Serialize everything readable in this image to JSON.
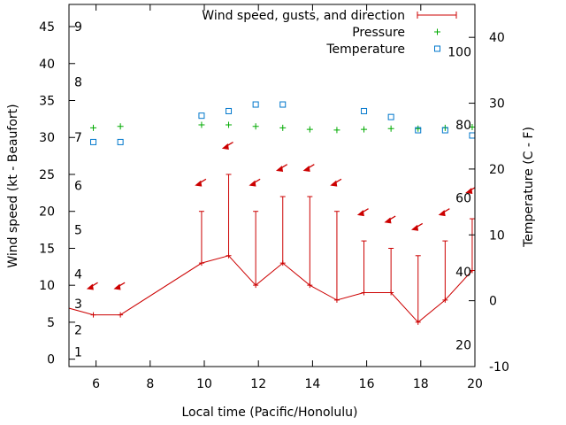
{
  "chart_data": {
    "type": "line",
    "xlabel": "Local time (Pacific/Honolulu)",
    "ylabel": "Wind speed (kt - Beaufort)",
    "y2label": "Temperature (C - F)",
    "xlim": [
      5,
      20
    ],
    "ylim": [
      -1,
      48
    ],
    "y2lim": [
      -10,
      45
    ],
    "x_ticks": [
      6,
      8,
      10,
      12,
      14,
      16,
      18,
      20
    ],
    "y_ticks": [
      0,
      5,
      10,
      15,
      20,
      25,
      30,
      35,
      40,
      45
    ],
    "y2_ticks": [
      -10,
      0,
      10,
      20,
      30,
      40
    ],
    "beaufort_labels": [
      {
        "text": "1",
        "wind": 1
      },
      {
        "text": "2",
        "wind": 4
      },
      {
        "text": "3",
        "wind": 7.5
      },
      {
        "text": "4",
        "wind": 11.5
      },
      {
        "text": "5",
        "wind": 17.5
      },
      {
        "text": "6",
        "wind": 23.5
      },
      {
        "text": "7",
        "wind": 30
      },
      {
        "text": "8",
        "wind": 37.5
      },
      {
        "text": "9",
        "wind": 45
      }
    ],
    "fahrenheit_labels": [
      {
        "text": "20",
        "celsius": -6.7
      },
      {
        "text": "40",
        "celsius": 4.4
      },
      {
        "text": "60",
        "celsius": 15.6
      },
      {
        "text": "80",
        "celsius": 26.7
      },
      {
        "text": "100",
        "celsius": 37.8
      }
    ],
    "grid": false,
    "legend_position": "top-right",
    "legend": [
      "Wind speed, gusts, and direction",
      "Pressure",
      "Temperature"
    ],
    "series": [
      {
        "name": "Wind speed, gusts, and direction",
        "color": "#cc0000",
        "x": [
          4.9,
          5.9,
          6.9,
          9.9,
          10.9,
          11.9,
          12.9,
          13.9,
          14.9,
          15.9,
          16.9,
          17.9,
          18.9,
          19.9
        ],
        "y": [
          7,
          6,
          6,
          13,
          14,
          10,
          13,
          10,
          8,
          9,
          9,
          5,
          8,
          12
        ],
        "gusts": [
          null,
          null,
          null,
          20,
          25,
          20,
          22,
          22,
          20,
          16,
          15,
          14,
          16,
          19
        ],
        "direction_arrows": [
          {
            "x": 5.9,
            "y": 10
          },
          {
            "x": 6.9,
            "y": 10
          },
          {
            "x": 9.9,
            "y": 24
          },
          {
            "x": 10.9,
            "y": 29
          },
          {
            "x": 11.9,
            "y": 24
          },
          {
            "x": 12.9,
            "y": 26
          },
          {
            "x": 13.9,
            "y": 26
          },
          {
            "x": 14.9,
            "y": 24
          },
          {
            "x": 15.9,
            "y": 20
          },
          {
            "x": 16.9,
            "y": 19
          },
          {
            "x": 17.9,
            "y": 18
          },
          {
            "x": 18.9,
            "y": 20
          },
          {
            "x": 19.9,
            "y": 23
          }
        ]
      },
      {
        "name": "Pressure",
        "color": "#00aa00",
        "x": [
          5.9,
          6.9,
          9.9,
          10.9,
          11.9,
          12.9,
          13.9,
          14.9,
          15.9,
          16.9,
          17.9,
          18.9,
          19.9
        ],
        "y": [
          31.3,
          31.5,
          31.7,
          31.7,
          31.5,
          31.3,
          31.1,
          31.0,
          31.1,
          31.2,
          31.2,
          31.3,
          31.4
        ]
      },
      {
        "name": "Temperature",
        "color": "#0077cc",
        "axis": "y2",
        "x": [
          5.9,
          6.9,
          9.9,
          10.9,
          11.9,
          12.9,
          15.9,
          16.9,
          17.9,
          18.9,
          19.9
        ],
        "y": [
          24.1,
          24.1,
          28.1,
          28.8,
          29.8,
          29.8,
          28.8,
          27.9,
          25.9,
          25.9,
          25.1
        ]
      }
    ]
  }
}
